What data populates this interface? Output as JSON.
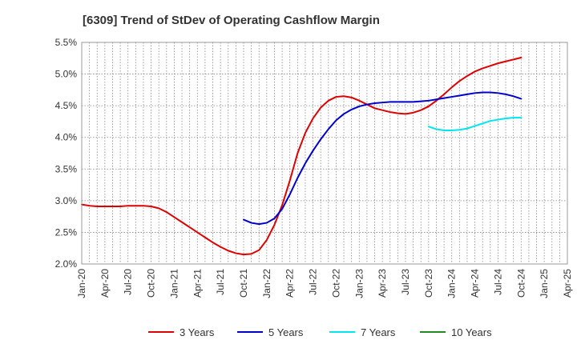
{
  "chart_data": {
    "type": "line",
    "title": "[6309]  Trend of StDev of Operating Cashflow Margin",
    "xlabel": "",
    "ylabel": "",
    "ylim": [
      2.0,
      5.5
    ],
    "yticks": [
      "2.0%",
      "2.5%",
      "3.0%",
      "3.5%",
      "4.0%",
      "4.5%",
      "5.0%",
      "5.5%"
    ],
    "ytick_values": [
      2.0,
      2.5,
      3.0,
      3.5,
      4.0,
      4.5,
      5.0,
      5.5
    ],
    "xticks": [
      "Jan-20",
      "Apr-20",
      "Jul-20",
      "Oct-20",
      "Jan-21",
      "Apr-21",
      "Jul-21",
      "Oct-21",
      "Jan-22",
      "Apr-22",
      "Jul-22",
      "Oct-22",
      "Jan-23",
      "Apr-23",
      "Jul-23",
      "Oct-23",
      "Jan-24",
      "Apr-24",
      "Jul-24",
      "Oct-24",
      "Jan-25",
      "Apr-25"
    ],
    "x_start": "2020-01",
    "x_end": "2025-04",
    "grid": true,
    "legend_position": "bottom",
    "series": [
      {
        "name": "3 Years",
        "color": "#dd0000",
        "x": [
          "2020-01",
          "2020-02",
          "2020-03",
          "2020-04",
          "2020-05",
          "2020-06",
          "2020-07",
          "2020-08",
          "2020-09",
          "2020-10",
          "2020-11",
          "2020-12",
          "2021-01",
          "2021-02",
          "2021-03",
          "2021-04",
          "2021-05",
          "2021-06",
          "2021-07",
          "2021-08",
          "2021-09",
          "2021-10",
          "2021-11",
          "2021-12",
          "2022-01",
          "2022-02",
          "2022-03",
          "2022-04",
          "2022-05",
          "2022-06",
          "2022-07",
          "2022-08",
          "2022-09",
          "2022-10",
          "2022-11",
          "2022-12",
          "2023-01",
          "2023-02",
          "2023-03",
          "2023-04",
          "2023-05",
          "2023-06",
          "2023-07",
          "2023-08",
          "2023-09",
          "2023-10",
          "2023-11",
          "2023-12",
          "2024-01",
          "2024-02",
          "2024-03",
          "2024-04",
          "2024-05",
          "2024-06",
          "2024-07",
          "2024-08",
          "2024-09",
          "2024-10"
        ],
        "values": [
          2.94,
          2.92,
          2.91,
          2.91,
          2.91,
          2.91,
          2.92,
          2.92,
          2.92,
          2.91,
          2.88,
          2.82,
          2.74,
          2.66,
          2.58,
          2.5,
          2.42,
          2.34,
          2.27,
          2.21,
          2.17,
          2.15,
          2.16,
          2.22,
          2.38,
          2.62,
          2.93,
          3.32,
          3.75,
          4.07,
          4.3,
          4.47,
          4.58,
          4.64,
          4.65,
          4.63,
          4.58,
          4.52,
          4.46,
          4.43,
          4.4,
          4.38,
          4.37,
          4.39,
          4.43,
          4.49,
          4.58,
          4.68,
          4.79,
          4.89,
          4.97,
          5.04,
          5.09,
          5.13,
          5.17,
          5.2,
          5.23,
          5.26
        ]
      },
      {
        "name": "5 Years",
        "color": "#0000cc",
        "x": [
          "2021-10",
          "2021-11",
          "2021-12",
          "2022-01",
          "2022-02",
          "2022-03",
          "2022-04",
          "2022-05",
          "2022-06",
          "2022-07",
          "2022-08",
          "2022-09",
          "2022-10",
          "2022-11",
          "2022-12",
          "2023-01",
          "2023-02",
          "2023-03",
          "2023-04",
          "2023-05",
          "2023-06",
          "2023-07",
          "2023-08",
          "2023-09",
          "2023-10",
          "2023-11",
          "2023-12",
          "2024-01",
          "2024-02",
          "2024-03",
          "2024-04",
          "2024-05",
          "2024-06",
          "2024-07",
          "2024-08",
          "2024-09",
          "2024-10"
        ],
        "values": [
          2.7,
          2.65,
          2.63,
          2.65,
          2.72,
          2.87,
          3.1,
          3.36,
          3.59,
          3.79,
          3.97,
          4.13,
          4.27,
          4.37,
          4.44,
          4.49,
          4.52,
          4.54,
          4.55,
          4.56,
          4.56,
          4.56,
          4.56,
          4.57,
          4.58,
          4.6,
          4.62,
          4.64,
          4.66,
          4.68,
          4.7,
          4.71,
          4.71,
          4.7,
          4.68,
          4.65,
          4.61
        ]
      },
      {
        "name": "7 Years",
        "color": "#00e5ee",
        "x": [
          "2023-10",
          "2023-11",
          "2023-12",
          "2024-01",
          "2024-02",
          "2024-03",
          "2024-04",
          "2024-05",
          "2024-06",
          "2024-07",
          "2024-08",
          "2024-09",
          "2024-10"
        ],
        "values": [
          4.17,
          4.13,
          4.11,
          4.11,
          4.12,
          4.14,
          4.18,
          4.22,
          4.26,
          4.28,
          4.3,
          4.31,
          4.31
        ]
      },
      {
        "name": "10 Years",
        "color": "#228b22",
        "x": [],
        "values": []
      }
    ]
  }
}
